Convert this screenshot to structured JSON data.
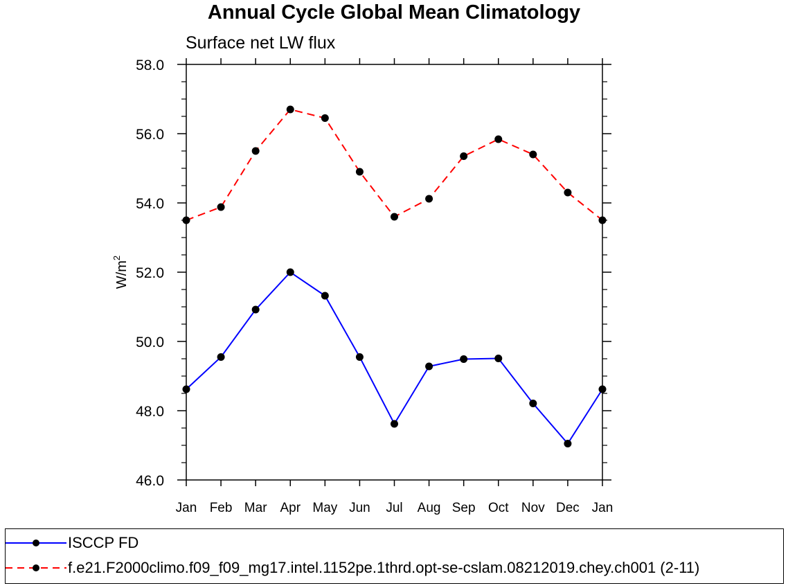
{
  "chart_data": {
    "type": "line",
    "title": "Annual Cycle Global Mean Climatology",
    "subtitle": "Surface net LW flux",
    "xlabel": "",
    "ylabel_base": "W/m",
    "ylabel_sup": "2",
    "categories": [
      "Jan",
      "Feb",
      "Mar",
      "Apr",
      "May",
      "Jun",
      "Jul",
      "Aug",
      "Sep",
      "Oct",
      "Nov",
      "Dec",
      "Jan"
    ],
    "ylim": [
      46.0,
      58.0
    ],
    "yticks": [
      "46.0",
      "48.0",
      "50.0",
      "52.0",
      "54.0",
      "56.0",
      "58.0"
    ],
    "series": [
      {
        "name": "ISCCP FD",
        "color": "#0000ff",
        "dash": "solid",
        "values": [
          48.62,
          49.55,
          50.92,
          52.0,
          51.32,
          49.55,
          47.62,
          49.28,
          49.49,
          49.51,
          48.21,
          47.05,
          48.62
        ]
      },
      {
        "name": "f.e21.F2000climo.f09_f09_mg17.intel.1152pe.1thrd.opt-se-cslam.08212019.chey.ch001 (2-11)",
        "color": "#ff0000",
        "dash": "dashed",
        "values": [
          53.5,
          53.88,
          55.5,
          56.7,
          56.45,
          54.9,
          53.6,
          54.12,
          55.35,
          55.84,
          55.4,
          54.3,
          53.5
        ]
      }
    ],
    "grid": false,
    "legend_position": "bottom"
  }
}
